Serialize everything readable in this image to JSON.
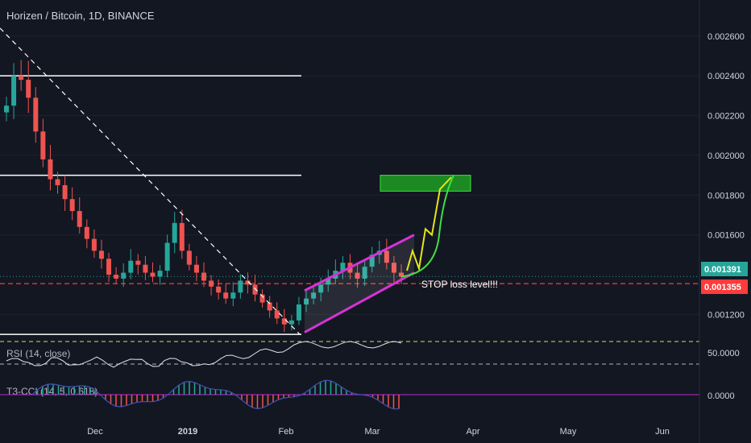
{
  "header": {
    "title": "Horizen / Bitcoin, 1D, BINANCE"
  },
  "annotations": {
    "stop_loss_text": "STOP loss level!!!"
  },
  "colors": {
    "background": "#131722",
    "up": "#26a69a",
    "down": "#ef5350",
    "current_price": "#26a69a",
    "stop_line": "#ff3b3b",
    "channel": "#d633d6",
    "target_box": "#1f9e22",
    "projection_yellow": "#e5e51a",
    "projection_green": "#3ee03e",
    "rsi_line": "#e0e3eb",
    "rsi_band": "#e5d46a",
    "cci_positive": "#26a69a",
    "cci_negative": "#ef5350",
    "cci_line": "#3f51b5"
  },
  "chart_data": [
    {
      "type": "line",
      "name": "price",
      "title": "Horizen / Bitcoin, 1D, BINANCE",
      "x_ticks": [
        "Dec",
        "2019",
        "Feb",
        "Mar",
        "Apr",
        "May",
        "Jun"
      ],
      "y_ticks": [
        "0.002600",
        "0.002400",
        "0.002200",
        "0.002000",
        "0.001800",
        "0.001600",
        "0.001200"
      ],
      "ylim": [
        0.00108,
        0.00266
      ],
      "candles_close_approx": [
        0.00225,
        0.0024,
        0.00238,
        0.00229,
        0.00212,
        0.00198,
        0.00188,
        0.00185,
        0.00178,
        0.00172,
        0.00164,
        0.00158,
        0.00152,
        0.00148,
        0.0014,
        0.00138,
        0.00141,
        0.00147,
        0.00145,
        0.00141,
        0.00139,
        0.00142,
        0.00156,
        0.00166,
        0.00152,
        0.00145,
        0.00141,
        0.00137,
        0.00134,
        0.00131,
        0.00128,
        0.00131,
        0.00137,
        0.00135,
        0.0013,
        0.00126,
        0.00122,
        0.00118,
        0.00115,
        0.00117,
        0.00125,
        0.00128,
        0.00131,
        0.00135,
        0.00138,
        0.00142,
        0.00146,
        0.00141,
        0.00138,
        0.00144,
        0.0015,
        0.00152,
        0.00146,
        0.00141,
        0.00139
      ],
      "horizontal_levels": [
        0.0024,
        0.0019,
        0.0011
      ],
      "current_price": "0.001391",
      "stop_level": "0.001355",
      "target_zone": [
        0.00182,
        0.0019
      ],
      "rising_channel": {
        "lower": [
          [
            "Feb",
            0.00111
          ],
          [
            "Mar",
            0.00141
          ]
        ],
        "upper": [
          [
            "Feb",
            0.00132
          ],
          [
            "Mar",
            0.0016
          ]
        ]
      },
      "downtrend_line": [
        [
          0.00264,
          "Nov"
        ],
        [
          0.0011,
          "Feb"
        ]
      ]
    },
    {
      "type": "line",
      "name": "RSI",
      "label": "RSI (14, close)",
      "y_tick": "50.0000",
      "bands": [
        70,
        30
      ]
    },
    {
      "type": "bar",
      "name": "T3-CCI",
      "label": "T3-CCI (14, 5, 0.618)",
      "y_tick": "0.0000"
    }
  ]
}
